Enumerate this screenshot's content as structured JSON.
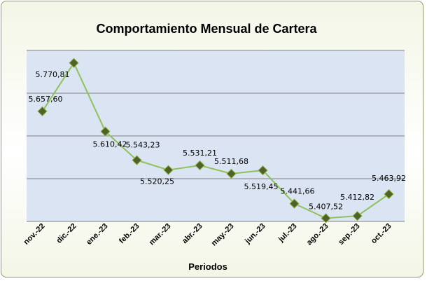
{
  "chart_data": {
    "type": "line",
    "title": "Comportamiento Mensual de Cartera",
    "xlabel": "Periodos",
    "ylabel": "",
    "categories": [
      "nov.-22",
      "dic.-22",
      "ene.-23",
      "feb.-23",
      "mar.-23",
      "abr.-23",
      "may.-23",
      "jun.-23",
      "jul.-23",
      "ago.-23",
      "sep.-23",
      "oct.-23"
    ],
    "values": [
      5657.6,
      5770.81,
      5610.42,
      5543.23,
      5520.25,
      5531.21,
      5511.68,
      5519.45,
      5441.66,
      5407.52,
      5412.82,
      5463.92
    ],
    "data_labels": [
      "5.657,60",
      "5.770,81",
      "5.610,42",
      "5.543,23",
      "5.520,25",
      "5.531,21",
      "5.511,68",
      "5.519,45",
      "5.441,66",
      "5.407,52",
      "5.412,82",
      "5.463,92"
    ],
    "grid": true,
    "legend": "none",
    "colors": {
      "line": "#8fc25a",
      "marker": "#4f6228",
      "marker_edge": "#93b84f",
      "plot_bg": "#dbe4f2",
      "grid": "#808080"
    }
  }
}
